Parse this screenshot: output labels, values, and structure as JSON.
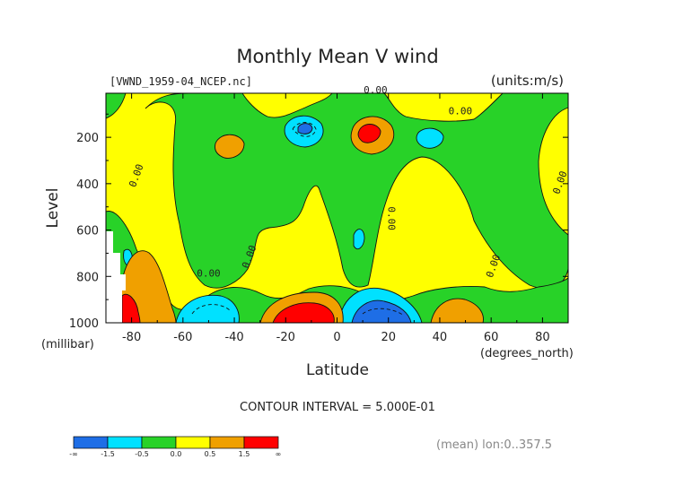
{
  "chart_data": {
    "type": "heatmap",
    "title": "Monthly Mean V wind",
    "source_label": "[VWND_1959-04_NCEP.nc]",
    "units_label": "(units:m/s)",
    "ylabel": "Level",
    "ylabel_units": "(millibar)",
    "xlabel": "Latitude",
    "xlabel_units": "(degrees_north)",
    "xlim": [
      -90,
      90
    ],
    "ylim": [
      1000,
      10
    ],
    "xticks": [
      "-80",
      "-60",
      "-40",
      "-20",
      "0",
      "20",
      "40",
      "60",
      "80"
    ],
    "xtick_values": [
      -80,
      -60,
      -40,
      -20,
      0,
      20,
      40,
      60,
      80
    ],
    "yticks": [
      "200",
      "400",
      "600",
      "800",
      "1000"
    ],
    "ytick_values": [
      200,
      400,
      600,
      800,
      1000
    ],
    "contour_interval_text": "CONTOUR INTERVAL = 5.000E-01",
    "footer_note": "(mean) lon:0..357.5",
    "contour_labels": [
      {
        "text": "0.00",
        "lat": 15,
        "lev": 10
      },
      {
        "text": "0.00",
        "lat": 48,
        "lev": 100
      },
      {
        "text": "0.00",
        "lat": -77,
        "lev": 370
      },
      {
        "text": "0.00",
        "lat": 88,
        "lev": 400
      },
      {
        "text": "0.00",
        "lat": 20,
        "lev": 550
      },
      {
        "text": "0.00",
        "lat": -33,
        "lev": 720
      },
      {
        "text": "0.00",
        "lat": -50,
        "lev": 800
      },
      {
        "text": "0.00",
        "lat": 62,
        "lev": 760
      }
    ],
    "colorbar": {
      "colors": [
        "#1e6ee6",
        "#00e1ff",
        "#28d228",
        "#ffff00",
        "#f0a000",
        "#ff0000"
      ],
      "labels": [
        "-∞",
        "-1.5",
        "-0.5",
        "0.0",
        "0.5",
        "1.5",
        "∞"
      ],
      "boundaries": [
        -1.5,
        -0.5,
        0.0,
        0.5,
        1.5
      ]
    },
    "field_features": [
      {
        "category": "positive",
        "shape": "background",
        "value": 0.25
      },
      {
        "category": "negative",
        "lat": -55,
        "lev": 350,
        "value": -0.3,
        "description": "green tongue descending from top"
      },
      {
        "category": "negative",
        "lat": 55,
        "lev": 300,
        "value": -0.3
      },
      {
        "category": "negative",
        "lat": -10,
        "lev": 780,
        "value": -0.3
      },
      {
        "category": "negative",
        "lat": 35,
        "lev": 800,
        "value": -0.3
      },
      {
        "category": "negative",
        "lat": -5,
        "lev": 140,
        "value": -0.8,
        "description": "upper cyan minimum"
      },
      {
        "category": "positive",
        "lat": 12,
        "lev": 150,
        "value": 2.0,
        "description": "upper red maximum"
      },
      {
        "category": "negative",
        "lat": 17,
        "lev": 970,
        "value": -1.8,
        "description": "low-level blue minimum"
      },
      {
        "category": "positive",
        "lat": -12,
        "lev": 960,
        "value": 1.8,
        "description": "low-level red maximum"
      },
      {
        "category": "positive",
        "lat": -86,
        "lev": 960,
        "value": 2.0,
        "description": "polar red maximum"
      },
      {
        "category": "negative",
        "lat": -50,
        "lev": 960,
        "value": -0.8
      },
      {
        "category": "positive",
        "lat": -65,
        "lev": 250,
        "value": 0.8
      }
    ]
  }
}
